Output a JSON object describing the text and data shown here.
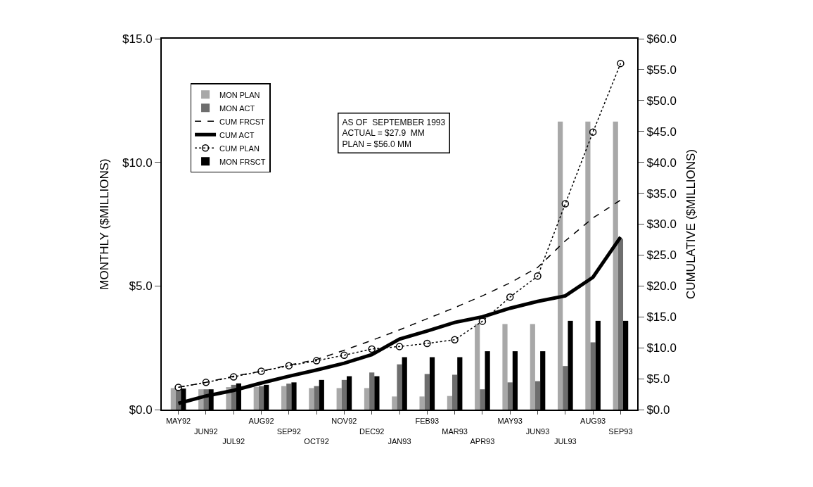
{
  "chart_data": {
    "type": "bar",
    "categories": [
      "MAY92",
      "JUN92",
      "JUL92",
      "AUG92",
      "SEP92",
      "OCT92",
      "NOV92",
      "DEC92",
      "JAN93",
      "FEB93",
      "MAR93",
      "APR93",
      "MAY93",
      "JUN93",
      "JUL93",
      "AUG93",
      "SEP93"
    ],
    "series": [
      {
        "name": "MON PLAN",
        "color": "#a8a8a8",
        "values": [
          0.87,
          0.82,
          0.91,
          0.91,
          0.95,
          0.87,
          0.87,
          0.87,
          0.53,
          0.53,
          0.55,
          3.46,
          3.46,
          3.46,
          11.65,
          11.65,
          11.65
        ]
      },
      {
        "name": "MON ACT",
        "color": "#6e6e6e",
        "values": [
          0.8,
          0.82,
          1.0,
          0.95,
          1.05,
          0.95,
          1.2,
          1.5,
          1.83,
          1.44,
          1.41,
          0.82,
          1.1,
          1.15,
          1.76,
          2.72,
          6.9
        ]
      },
      {
        "name": "CUM FRCST",
        "type": "line",
        "axis": "y2",
        "color": "#000000",
        "line_style": "dashed",
        "marker": "none",
        "values": [
          3.6,
          4.4,
          5.4,
          6.2,
          7.2,
          8.1,
          9.6,
          11.2,
          12.9,
          14.7,
          16.5,
          18.4,
          20.5,
          23.0,
          27.3,
          31.0,
          33.9
        ]
      },
      {
        "name": "CUM ACT",
        "type": "line",
        "axis": "y2",
        "color": "#000000",
        "line_style": "solid",
        "marker": "none",
        "values": [
          1.0,
          2.2,
          3.1,
          4.3,
          5.4,
          6.4,
          7.5,
          8.9,
          11.4,
          12.7,
          14.1,
          15.0,
          16.4,
          17.5,
          18.4,
          21.4,
          27.9
        ]
      },
      {
        "name": "CUM PLAN",
        "type": "line",
        "axis": "y2",
        "color": "#000000",
        "line_style": "dotted",
        "marker": "circle",
        "values": [
          3.6,
          4.4,
          5.3,
          6.2,
          7.1,
          7.9,
          8.8,
          9.8,
          10.2,
          10.7,
          11.3,
          14.3,
          18.2,
          21.6,
          33.3,
          44.9,
          56.0
        ]
      },
      {
        "name": "MON FRSCT",
        "color": "#000000",
        "values": [
          0.85,
          0.82,
          1.06,
          1.0,
          1.1,
          1.2,
          1.35,
          1.35,
          2.12,
          2.12,
          2.12,
          2.36,
          2.36,
          2.36,
          3.59,
          3.59,
          3.59
        ]
      }
    ],
    "ylabel": "MONTHLY ($MILLIONS)",
    "y2label": "CUMULATIVE ($MILLIONS)",
    "ylim": [
      0,
      15
    ],
    "yticks": [
      {
        "value": 0,
        "label": "$0.0"
      },
      {
        "value": 5,
        "label": "$5.0"
      },
      {
        "value": 10,
        "label": "$10.0"
      },
      {
        "value": 15,
        "label": "$15.0"
      }
    ],
    "y2lim": [
      0,
      60
    ],
    "y2ticks": [
      {
        "value": 0,
        "label": "$0.0"
      },
      {
        "value": 5,
        "label": "$5.0"
      },
      {
        "value": 10,
        "label": "$10.0"
      },
      {
        "value": 15,
        "label": "$15.0"
      },
      {
        "value": 20,
        "label": "$20.0"
      },
      {
        "value": 25,
        "label": "$25.0"
      },
      {
        "value": 30,
        "label": "$30.0"
      },
      {
        "value": 35,
        "label": "$35.0"
      },
      {
        "value": 40,
        "label": "$40.0"
      },
      {
        "value": 45,
        "label": "$45.0"
      },
      {
        "value": 50,
        "label": "$50.0"
      },
      {
        "value": 55,
        "label": "$55.0"
      },
      {
        "value": 60,
        "label": "$60.0"
      }
    ],
    "annotations": [
      "AS OF  SEPTEMBER 1993\nACTUAL = $27.9  MM\nPLAN = $56.0 MM"
    ],
    "grid": false,
    "legend": "top left"
  }
}
